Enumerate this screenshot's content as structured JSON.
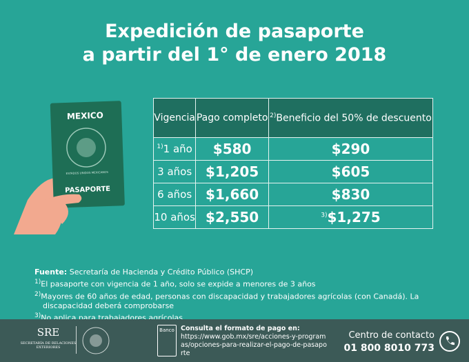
{
  "title": {
    "line1": "Expedición de pasaporte",
    "line2": "a partir del 1° de enero 2018"
  },
  "passport": {
    "country": "MEXICO",
    "seal": "ESTADOS UNIDOS MEXICANOS",
    "label": "PASAPORTE"
  },
  "table": {
    "header": [
      {
        "text": "Vigencia"
      },
      {
        "text": "Pago completo"
      },
      {
        "sup": "2)",
        "text": "Beneficio del 50% de descuento"
      }
    ],
    "rows": [
      [
        {
          "sup": "1)",
          "text": "1 año"
        },
        {
          "text": "$580"
        },
        {
          "text": "$290"
        }
      ],
      [
        {
          "text": "3 años"
        },
        {
          "text": "$1,205"
        },
        {
          "text": "$605"
        }
      ],
      [
        {
          "text": "6 años"
        },
        {
          "text": "$1,660"
        },
        {
          "text": "$830"
        }
      ],
      [
        {
          "text": "10 años"
        },
        {
          "text": "$2,550"
        },
        {
          "sup": "3)",
          "text": "$1,275"
        }
      ]
    ]
  },
  "notes": {
    "source_label": "Fuente:",
    "source": "Secretaría de Hacienda y Crédito Público (SHCP)",
    "items": [
      {
        "sup": "1)",
        "text": "El pasaporte con vigencia de 1 año, solo se expide a menores de 3 años"
      },
      {
        "sup": "2)",
        "text": "Mayores de 60 años de edad, personas con discapacidad y trabajadores agrícolas (con Canadá). La discapacidad deberá comprobarse"
      },
      {
        "sup": "3)",
        "text": "No aplica para trabajadores agrícolas"
      }
    ]
  },
  "footer": {
    "sre": "SRE",
    "sre_full": "SECRETARÍA DE RELACIONES EXTERIORES",
    "bank": "Banco",
    "consult": "Consulta el formato de pago en:",
    "url": "https://www.gob.mx/sre/acciones-y-programas/opciones-para-realizar-el-pago-de-pasaporte",
    "contact": "Centro de contacto",
    "phone": "01 800 8010 773"
  }
}
